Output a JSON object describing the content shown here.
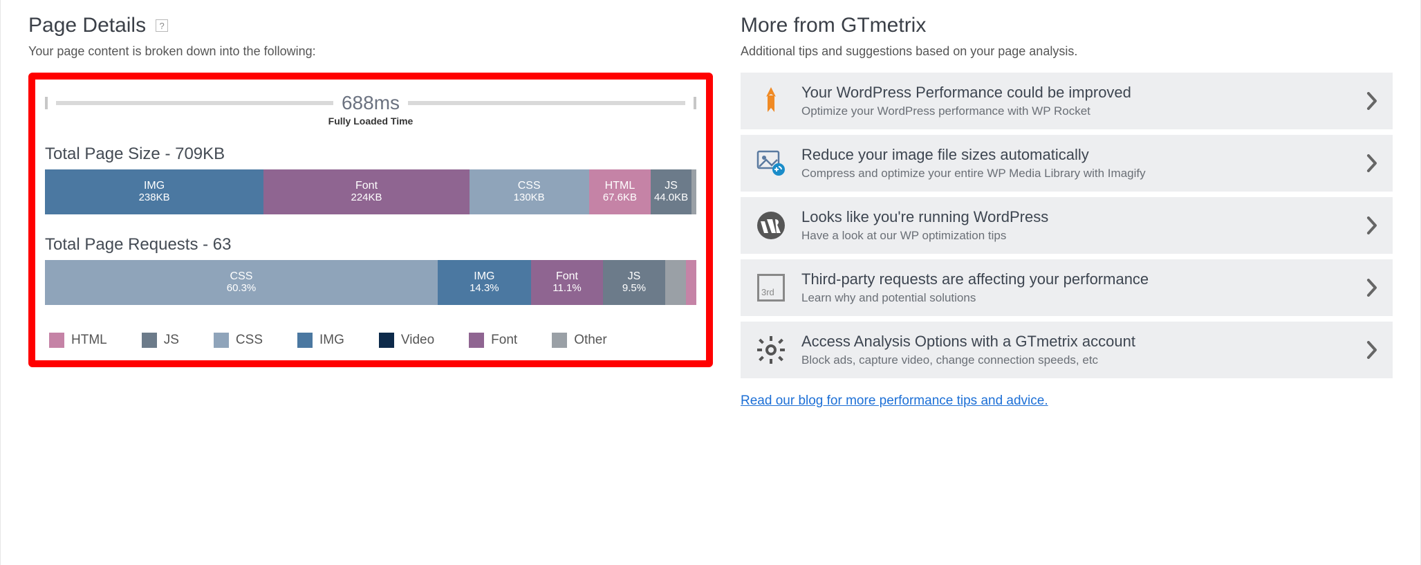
{
  "colors": {
    "html": "#c583a6",
    "js": "#6c7b8a",
    "css": "#8fa4ba",
    "img": "#4b78a1",
    "video": "#0d2a4a",
    "font": "#8f6591",
    "other": "#9aa0a6",
    "tip_bg": "#edeef0",
    "red_border": "#ff0000",
    "link": "#1c6fd6"
  },
  "pageDetails": {
    "heading": "Page Details",
    "help": "?",
    "subtitle": "Your page content is broken down into the following:",
    "time": {
      "value": "688ms",
      "label": "Fully Loaded Time"
    },
    "size": {
      "heading": "Total Page Size - 709KB",
      "total_kb": 709,
      "segments": [
        {
          "key": "img",
          "label": "IMG",
          "value": "238KB",
          "kb": 238,
          "color": "#4b78a1"
        },
        {
          "key": "font",
          "label": "Font",
          "value": "224KB",
          "kb": 224,
          "color": "#8f6591"
        },
        {
          "key": "css",
          "label": "CSS",
          "value": "130KB",
          "kb": 130,
          "color": "#8fa4ba"
        },
        {
          "key": "html",
          "label": "HTML",
          "value": "67.6KB",
          "kb": 67.6,
          "color": "#c583a6"
        },
        {
          "key": "js",
          "label": "JS",
          "value": "44.0KB",
          "kb": 44.0,
          "color": "#6c7b8a"
        },
        {
          "key": "other",
          "label": "",
          "value": "",
          "kb": 5.4,
          "color": "#9aa0a6"
        }
      ]
    },
    "requests": {
      "heading": "Total Page Requests - 63",
      "total": 63,
      "segments": [
        {
          "key": "css",
          "label": "CSS",
          "value": "60.3%",
          "pct": 60.3,
          "color": "#8fa4ba"
        },
        {
          "key": "img",
          "label": "IMG",
          "value": "14.3%",
          "pct": 14.3,
          "color": "#4b78a1"
        },
        {
          "key": "font",
          "label": "Font",
          "value": "11.1%",
          "pct": 11.1,
          "color": "#8f6591"
        },
        {
          "key": "js",
          "label": "JS",
          "value": "9.5%",
          "pct": 9.5,
          "color": "#6c7b8a"
        },
        {
          "key": "other",
          "label": "",
          "value": "",
          "pct": 3.2,
          "color": "#9aa0a6"
        },
        {
          "key": "html",
          "label": "",
          "value": "",
          "pct": 1.6,
          "color": "#c583a6"
        }
      ]
    },
    "legend": [
      {
        "label": "HTML",
        "key": "html",
        "color": "#c583a6"
      },
      {
        "label": "JS",
        "key": "js",
        "color": "#6c7b8a"
      },
      {
        "label": "CSS",
        "key": "css",
        "color": "#8fa4ba"
      },
      {
        "label": "IMG",
        "key": "img",
        "color": "#4b78a1"
      },
      {
        "label": "Video",
        "key": "video",
        "color": "#0d2a4a"
      },
      {
        "label": "Font",
        "key": "font",
        "color": "#8f6591"
      },
      {
        "label": "Other",
        "key": "other",
        "color": "#9aa0a6"
      }
    ]
  },
  "more": {
    "heading": "More from GTmetrix",
    "subtitle": "Additional tips and suggestions based on your page analysis.",
    "tips": [
      {
        "icon": "wp-rocket",
        "title": "Your WordPress Performance could be improved",
        "desc": "Optimize your WordPress performance with WP Rocket"
      },
      {
        "icon": "image-opt",
        "title": "Reduce your image file sizes automatically",
        "desc": "Compress and optimize your entire WP Media Library with Imagify"
      },
      {
        "icon": "wordpress",
        "title": "Looks like you're running WordPress",
        "desc": "Have a look at our WP optimization tips"
      },
      {
        "icon": "third-party",
        "title": "Third-party requests are affecting your performance",
        "desc": "Learn why and potential solutions"
      },
      {
        "icon": "gear",
        "title": "Access Analysis Options with a GTmetrix account",
        "desc": "Block ads, capture video, change connection speeds, etc"
      }
    ],
    "blog_link": "Read our blog for more performance tips and advice."
  }
}
